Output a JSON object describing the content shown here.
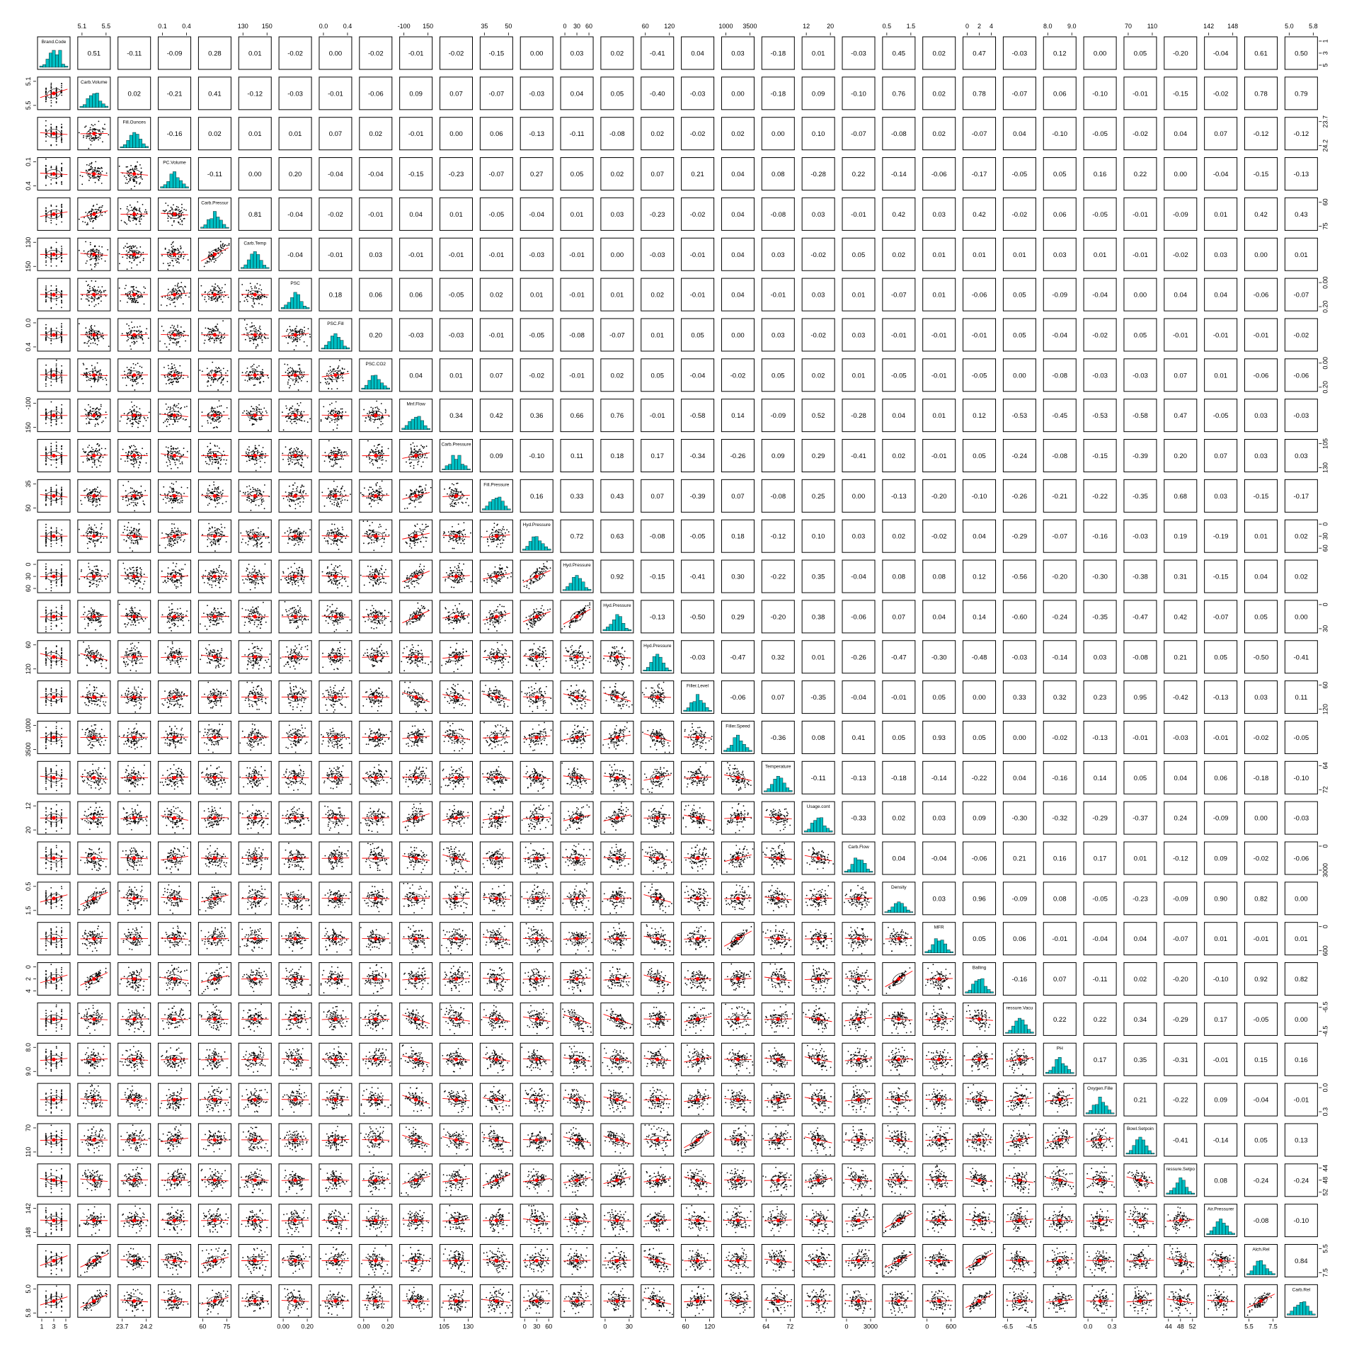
{
  "chart_data": {
    "type": "scatter-matrix",
    "title": "",
    "variables": [
      "Brand.Code",
      "Carb.Volume",
      "Fill.Ounces",
      "PC.Volume",
      "Carb.Pressure",
      "Carb.Temp",
      "PSC",
      "PSC.Fill",
      "PSC.CO2",
      "Mnf.Flow",
      "Carb.Pressure1",
      "Fill.Pressure",
      "Hyd.Pressure1",
      "Hyd.Pressure2",
      "Hyd.Pressure3",
      "Hyd.Pressure4",
      "Filler.Level",
      "Filler.Speed",
      "Temperature",
      "Usage.cont",
      "Carb.Flow",
      "Density",
      "MFR",
      "Balling",
      "Pressure.Vacuum",
      "PH",
      "Oxygen.Filler",
      "Bowl.Setpoint",
      "Pressure.Setpoint",
      "Air.Pressurer",
      "Alch.Rel",
      "Carb.Rel"
    ],
    "diag_labels": [
      "Brand.Code",
      "Carb.Volume",
      "Fill.Ounces",
      "PC.Volume",
      "Carb.Pressur",
      "Carb.Temp",
      "PSC",
      "PSC.Fill",
      "PSC.CO2",
      "Mnf.Flow",
      "Carb.Pressure",
      "Fill.Pressure",
      "Hyd.Pressure",
      "Hyd.Pressure",
      "Hyd.Pressure",
      "Hyd.Pressure",
      "Filler.Level",
      "Filler.Speed",
      "Temperature",
      "Usage.cont",
      "Carb.Flow",
      "Density",
      "MFR",
      "Balling",
      "ressure.Vacu",
      "PH",
      "Oxygen.Fille",
      "Bowl.Setpoin",
      "ressure.Setpo",
      "Air.Pressurer",
      "Alch.Rel",
      "Carb.Rel"
    ],
    "correlations": [
      [
        0.51,
        -0.11,
        -0.09,
        0.28,
        0.01,
        -0.02,
        0.0,
        -0.02,
        -0.01,
        -0.02,
        -0.15,
        0.0,
        0.03,
        0.02,
        -0.41,
        0.04,
        0.03,
        -0.18,
        0.01,
        -0.03,
        0.45,
        0.02,
        0.47,
        -0.03,
        0.12,
        0.0,
        0.05,
        -0.2,
        -0.04,
        0.61,
        0.5
      ],
      [
        0.02,
        -0.21,
        0.41,
        -0.12,
        -0.03,
        -0.01,
        -0.06,
        0.09,
        0.07,
        -0.07,
        -0.03,
        0.04,
        0.05,
        -0.4,
        -0.03,
        0.0,
        -0.18,
        0.09,
        -0.1,
        0.76,
        0.02,
        0.78,
        -0.07,
        0.06,
        -0.1,
        -0.01,
        -0.15,
        -0.02,
        0.78,
        0.79
      ],
      [
        -0.16,
        0.02,
        0.01,
        0.01,
        0.07,
        0.02,
        -0.01,
        0.0,
        0.06,
        -0.13,
        -0.11,
        -0.08,
        0.02,
        -0.02,
        0.02,
        0.0,
        0.1,
        -0.07,
        -0.08,
        0.02,
        -0.07,
        0.04,
        -0.1,
        -0.05,
        -0.02,
        0.04,
        0.07,
        -0.12,
        -0.12
      ],
      [
        -0.11,
        0.0,
        0.2,
        -0.04,
        -0.04,
        -0.15,
        -0.23,
        -0.07,
        0.27,
        0.05,
        0.02,
        0.07,
        0.21,
        0.04,
        0.08,
        -0.28,
        0.22,
        -0.14,
        -0.06,
        -0.17,
        -0.05,
        0.05,
        0.16,
        0.22,
        0.0,
        -0.04,
        -0.15,
        -0.13
      ],
      [
        0.81,
        -0.04,
        -0.02,
        -0.01,
        0.04,
        0.01,
        -0.05,
        -0.04,
        0.01,
        0.03,
        -0.23,
        -0.02,
        0.04,
        -0.08,
        0.03,
        -0.01,
        0.42,
        0.03,
        0.42,
        -0.02,
        0.06,
        -0.05,
        -0.01,
        -0.09,
        0.01,
        0.42,
        0.43
      ],
      [
        -0.04,
        -0.01,
        0.03,
        -0.01,
        -0.01,
        -0.01,
        -0.03,
        -0.01,
        0.0,
        -0.03,
        -0.01,
        0.04,
        0.03,
        -0.02,
        0.05,
        0.02,
        0.01,
        0.01,
        0.01,
        0.03,
        0.01,
        -0.01,
        -0.02,
        0.03,
        0.0,
        0.01
      ],
      [
        0.18,
        0.06,
        0.06,
        -0.05,
        0.02,
        0.01,
        -0.01,
        0.01,
        0.02,
        -0.01,
        0.04,
        -0.01,
        0.03,
        0.01,
        -0.07,
        0.01,
        -0.06,
        0.05,
        -0.09,
        -0.04,
        0.0,
        0.04,
        0.04,
        -0.06,
        -0.07
      ],
      [
        0.2,
        -0.03,
        -0.03,
        -0.01,
        -0.05,
        -0.08,
        -0.07,
        0.01,
        0.05,
        0.0,
        0.03,
        -0.02,
        0.03,
        -0.01,
        -0.01,
        -0.01,
        0.05,
        -0.04,
        -0.02,
        0.05,
        -0.01,
        -0.01,
        -0.01,
        -0.02
      ],
      [
        0.04,
        0.01,
        0.07,
        -0.02,
        -0.01,
        0.02,
        0.05,
        -0.04,
        -0.02,
        0.05,
        0.02,
        0.01,
        -0.05,
        -0.01,
        -0.05,
        0.0,
        -0.08,
        -0.03,
        -0.03,
        0.07,
        0.01,
        -0.06,
        -0.06
      ],
      [
        0.34,
        0.42,
        0.36,
        0.66,
        0.76,
        -0.01,
        -0.58,
        0.14,
        -0.09,
        0.52,
        -0.28,
        0.04,
        0.01,
        0.12,
        -0.53,
        -0.45,
        -0.53,
        -0.58,
        0.47,
        -0.05,
        0.03,
        -0.03
      ],
      [
        0.09,
        -0.1,
        0.11,
        0.18,
        0.17,
        -0.34,
        -0.26,
        0.09,
        0.29,
        -0.41,
        0.02,
        -0.01,
        0.05,
        -0.24,
        -0.08,
        -0.15,
        -0.39,
        0.2,
        0.07,
        0.03,
        0.03
      ],
      [
        0.16,
        0.33,
        0.43,
        0.07,
        -0.39,
        0.07,
        -0.08,
        0.25,
        0.0,
        -0.13,
        -0.2,
        -0.1,
        -0.26,
        -0.21,
        -0.22,
        -0.35,
        0.68,
        0.03,
        -0.15,
        -0.17
      ],
      [
        0.72,
        0.63,
        -0.08,
        -0.05,
        0.18,
        -0.12,
        0.1,
        0.03,
        0.02,
        -0.02,
        0.04,
        -0.29,
        -0.07,
        -0.16,
        -0.03,
        0.19,
        -0.19,
        0.01,
        0.02
      ],
      [
        0.92,
        -0.15,
        -0.41,
        0.3,
        -0.22,
        0.35,
        -0.04,
        0.08,
        0.08,
        0.12,
        -0.56,
        -0.2,
        -0.3,
        -0.38,
        0.31,
        -0.15,
        0.04,
        0.02
      ],
      [
        -0.13,
        -0.5,
        0.29,
        -0.2,
        0.38,
        -0.06,
        0.07,
        0.04,
        0.14,
        -0.6,
        -0.24,
        -0.35,
        -0.47,
        0.42,
        -0.07,
        0.05,
        0.0
      ],
      [
        -0.03,
        -0.47,
        0.32,
        0.01,
        -0.26,
        -0.47,
        -0.3,
        -0.48,
        -0.03,
        -0.14,
        0.03,
        -0.08,
        0.21,
        0.05,
        -0.5,
        -0.41
      ],
      [
        -0.06,
        0.07,
        -0.35,
        -0.04,
        -0.01,
        0.05,
        0.0,
        0.33,
        0.32,
        0.23,
        0.95,
        -0.42,
        -0.13,
        0.03,
        0.11
      ],
      [
        -0.36,
        0.08,
        0.41,
        0.05,
        0.93,
        0.05,
        0.0,
        -0.02,
        -0.13,
        -0.01,
        -0.03,
        -0.01,
        -0.02,
        -0.05
      ],
      [
        -0.11,
        -0.13,
        -0.18,
        -0.14,
        -0.22,
        0.04,
        -0.16,
        0.14,
        0.05,
        0.04,
        0.06,
        -0.18,
        -0.1
      ],
      [
        -0.33,
        0.02,
        0.03,
        0.09,
        -0.3,
        -0.32,
        -0.29,
        -0.37,
        0.24,
        -0.09,
        0.0,
        -0.03
      ],
      [
        0.04,
        -0.04,
        -0.06,
        0.21,
        0.16,
        0.17,
        0.01,
        -0.12,
        0.09,
        -0.02,
        -0.06
      ],
      [
        0.03,
        0.96,
        -0.09,
        0.08,
        -0.05,
        -0.23,
        -0.09,
        0.9,
        0.82
      ],
      [
        0.05,
        0.06,
        -0.01,
        -0.04,
        0.04,
        -0.07,
        0.01,
        -0.01,
        0.01
      ],
      [
        -0.16,
        0.07,
        -0.11,
        0.02,
        -0.2,
        -0.1,
        0.92,
        0.82
      ],
      [
        0.22,
        0.22,
        0.34,
        -0.29,
        0.17,
        -0.05,
        0.0
      ],
      [
        0.17,
        0.35,
        -0.31,
        -0.01,
        0.15,
        0.16
      ],
      [
        0.21,
        -0.22,
        0.09,
        -0.04,
        -0.01
      ],
      [
        -0.41,
        -0.14,
        0.05,
        0.13
      ],
      [
        0.08,
        -0.24,
        -0.24
      ],
      [
        -0.08,
        -0.1
      ],
      [
        0.84
      ],
      []
    ],
    "top_axis_ticks": {
      "1": [
        "5.1",
        "5.5"
      ],
      "3": [
        "0.1",
        "0.4"
      ],
      "5": [
        "130",
        "150"
      ],
      "7": [
        "0.0",
        "0.4"
      ],
      "9": [
        "-100",
        "150"
      ],
      "11": [
        "35",
        "50"
      ],
      "13": [
        "0",
        "30",
        "60"
      ],
      "15": [
        "60",
        "120"
      ],
      "17": [
        "1000",
        "3500"
      ],
      "19": [
        "12",
        "20"
      ],
      "21": [
        "0.5",
        "1.5"
      ],
      "23": [
        "0",
        "2",
        "4"
      ],
      "25": [
        "8.0",
        "9.0"
      ],
      "27": [
        "70",
        "110"
      ],
      "29": [
        "142",
        "148"
      ],
      "31": [
        "5.0",
        "5.8"
      ]
    },
    "bottom_axis_ticks": {
      "0": [
        "1",
        "3",
        "5"
      ],
      "2": [
        "23.7",
        "24.2"
      ],
      "4": [
        "60",
        "75"
      ],
      "6": [
        "0.00",
        "0.20"
      ],
      "8": [
        "0.00",
        "0.20"
      ],
      "10": [
        "105",
        "130"
      ],
      "12": [
        "0",
        "30",
        "60"
      ],
      "14": [
        "0",
        "30"
      ],
      "16": [
        "60",
        "120"
      ],
      "18": [
        "64",
        "72"
      ],
      "20": [
        "0",
        "3000"
      ],
      "22": [
        "0",
        "600"
      ],
      "24": [
        "-6.5",
        "-4.5"
      ],
      "26": [
        "0.0",
        "0.3"
      ],
      "28": [
        "44",
        "48",
        "52"
      ],
      "30": [
        "5.5",
        "7.5"
      ]
    },
    "left_axis_ticks": {
      "1": [
        "5.1",
        "5.5"
      ],
      "3": [
        "0.1",
        "0.4"
      ],
      "5": [
        "130",
        "150"
      ],
      "7": [
        "0.0",
        "0.4"
      ],
      "9": [
        "-100",
        "150"
      ],
      "11": [
        "35",
        "50"
      ],
      "13": [
        "0",
        "30",
        "60"
      ],
      "15": [
        "60",
        "120"
      ],
      "17": [
        "1000",
        "3500"
      ],
      "19": [
        "12",
        "20"
      ],
      "21": [
        "0.5",
        "1.5"
      ],
      "23": [
        "0",
        "2",
        "4"
      ],
      "25": [
        "8.0",
        "9.0"
      ],
      "27": [
        "70",
        "110"
      ],
      "29": [
        "142",
        "148"
      ],
      "31": [
        "5.0",
        "5.8"
      ]
    },
    "right_axis_ticks": {
      "0": [
        "1",
        "3",
        "5"
      ],
      "2": [
        "23.7",
        "24.2"
      ],
      "4": [
        "60",
        "75"
      ],
      "6": [
        "0.00",
        "0.20"
      ],
      "8": [
        "0.00",
        "0.20"
      ],
      "10": [
        "105",
        "130"
      ],
      "12": [
        "0",
        "30",
        "60"
      ],
      "14": [
        "0",
        "30"
      ],
      "16": [
        "60",
        "120"
      ],
      "18": [
        "64",
        "72"
      ],
      "20": [
        "0",
        "3000"
      ],
      "22": [
        "0",
        "600"
      ],
      "24": [
        "-6.5",
        "-4.5"
      ],
      "26": [
        "0.0",
        "0.3"
      ],
      "28": [
        "44",
        "48",
        "52"
      ],
      "30": [
        "5.5",
        "7.5"
      ]
    },
    "colors": {
      "points": "#000000",
      "fit_line": "#ff0000",
      "histogram": "#00bfc4",
      "box": "#000000"
    }
  }
}
